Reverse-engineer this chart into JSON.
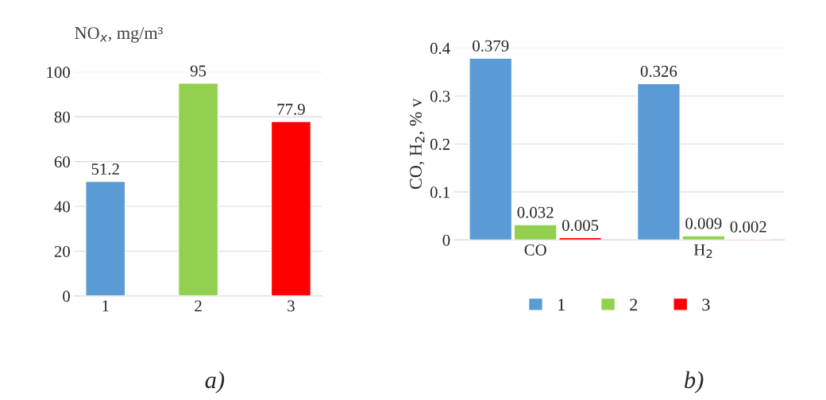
{
  "chart_data": [
    {
      "type": "bar",
      "title": "NO$_{x}$, mg/m³",
      "categories": [
        "1",
        "2",
        "3"
      ],
      "values": [
        51.2,
        95,
        77.9
      ],
      "colors": [
        "#5b9bd5",
        "#92d050",
        "#ff0000"
      ],
      "ylim": [
        0,
        100
      ],
      "yticks": [
        0,
        20,
        40,
        60,
        80,
        100
      ],
      "grid": "y",
      "data_labels": true,
      "annotations": [
        "a)"
      ]
    },
    {
      "type": "bar",
      "ylabel": "CO, H$_{2}$, % v",
      "categories": [
        "CO",
        "H$_{2}$"
      ],
      "series": [
        {
          "name": "1",
          "color": "#5b9bd5",
          "values": [
            0.379,
            0.326
          ]
        },
        {
          "name": "2",
          "color": "#92d050",
          "values": [
            0.032,
            0.009
          ]
        },
        {
          "name": "3",
          "color": "#ff0000",
          "values": [
            0.005,
            0.002
          ]
        }
      ],
      "ylim": [
        0,
        0.4
      ],
      "yticks": [
        0,
        0.1,
        0.2,
        0.3,
        0.4
      ],
      "grid": "y",
      "data_labels": true,
      "legend": "bottom",
      "annotations": [
        "b)"
      ]
    }
  ]
}
